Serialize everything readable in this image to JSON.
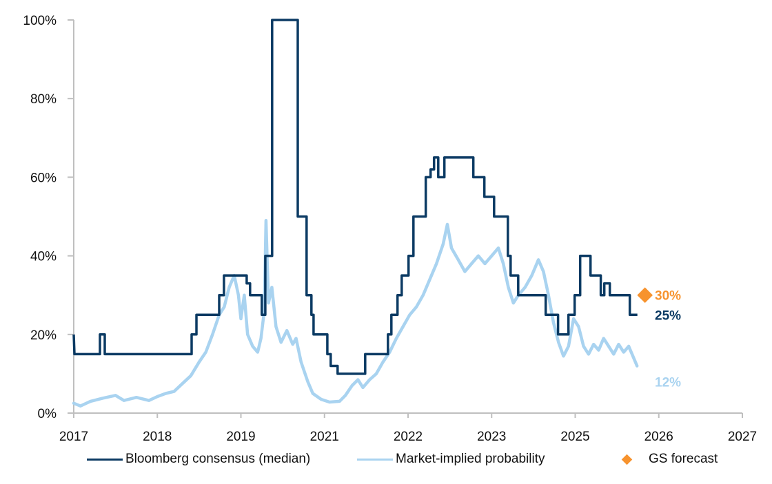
{
  "chart_data": {
    "type": "line",
    "title": "",
    "xlabel": "",
    "ylabel": "",
    "x_ticks": [
      "2017",
      "2018",
      "2019",
      "2021",
      "2022",
      "2023",
      "2025",
      "2026",
      "2027"
    ],
    "x_range_tick_index": [
      0,
      8
    ],
    "y_ticks": [
      "0%",
      "20%",
      "40%",
      "60%",
      "80%",
      "100%"
    ],
    "ylim": [
      0,
      100
    ],
    "grid": false,
    "legend_position": "bottom",
    "series": [
      {
        "name": "Bloomberg consensus (median)",
        "color": "#0b3a63",
        "style": "step",
        "points": [
          [
            0.0,
            20
          ],
          [
            0.008,
            15
          ],
          [
            0.313,
            15
          ],
          [
            0.313,
            20
          ],
          [
            0.371,
            20
          ],
          [
            0.371,
            15
          ],
          [
            1.41,
            15
          ],
          [
            1.41,
            20
          ],
          [
            1.468,
            20
          ],
          [
            1.468,
            25
          ],
          [
            1.74,
            25
          ],
          [
            1.74,
            30
          ],
          [
            1.797,
            30
          ],
          [
            1.797,
            35
          ],
          [
            2.069,
            35
          ],
          [
            2.069,
            33
          ],
          [
            2.11,
            33
          ],
          [
            2.11,
            30
          ],
          [
            2.25,
            30
          ],
          [
            2.25,
            25
          ],
          [
            2.292,
            25
          ],
          [
            2.292,
            40
          ],
          [
            2.374,
            40
          ],
          [
            2.374,
            100
          ],
          [
            2.68,
            100
          ],
          [
            2.68,
            50
          ],
          [
            2.786,
            50
          ],
          [
            2.786,
            30
          ],
          [
            2.844,
            30
          ],
          [
            2.844,
            25
          ],
          [
            2.869,
            25
          ],
          [
            2.869,
            20
          ],
          [
            3.034,
            20
          ],
          [
            3.034,
            15
          ],
          [
            3.075,
            15
          ],
          [
            3.075,
            12
          ],
          [
            3.157,
            12
          ],
          [
            3.157,
            10
          ],
          [
            3.487,
            10
          ],
          [
            3.487,
            15
          ],
          [
            3.759,
            15
          ],
          [
            3.759,
            20
          ],
          [
            3.8,
            20
          ],
          [
            3.8,
            25
          ],
          [
            3.874,
            25
          ],
          [
            3.874,
            30
          ],
          [
            3.924,
            30
          ],
          [
            3.924,
            35
          ],
          [
            4.006,
            35
          ],
          [
            4.006,
            40
          ],
          [
            4.064,
            40
          ],
          [
            4.064,
            50
          ],
          [
            4.212,
            50
          ],
          [
            4.212,
            60
          ],
          [
            4.27,
            60
          ],
          [
            4.27,
            62
          ],
          [
            4.311,
            62
          ],
          [
            4.311,
            65
          ],
          [
            4.361,
            65
          ],
          [
            4.361,
            60
          ],
          [
            4.435,
            60
          ],
          [
            4.435,
            65
          ],
          [
            4.781,
            65
          ],
          [
            4.781,
            60
          ],
          [
            4.913,
            60
          ],
          [
            4.913,
            55
          ],
          [
            5.029,
            55
          ],
          [
            5.029,
            50
          ],
          [
            5.194,
            50
          ],
          [
            5.194,
            40
          ],
          [
            5.227,
            40
          ],
          [
            5.227,
            35
          ],
          [
            5.318,
            35
          ],
          [
            5.318,
            30
          ],
          [
            5.647,
            30
          ],
          [
            5.647,
            25
          ],
          [
            5.795,
            25
          ],
          [
            5.795,
            20
          ],
          [
            5.919,
            20
          ],
          [
            5.919,
            25
          ],
          [
            5.993,
            25
          ],
          [
            5.993,
            30
          ],
          [
            6.059,
            30
          ],
          [
            6.059,
            40
          ],
          [
            6.183,
            40
          ],
          [
            6.183,
            35
          ],
          [
            6.306,
            35
          ],
          [
            6.306,
            30
          ],
          [
            6.348,
            30
          ],
          [
            6.348,
            33
          ],
          [
            6.414,
            33
          ],
          [
            6.414,
            30
          ],
          [
            6.653,
            30
          ],
          [
            6.653,
            25
          ],
          [
            6.744,
            25
          ]
        ],
        "end_label": "25%"
      },
      {
        "name": "Market-implied probability",
        "color": "#a9d3f0",
        "style": "line",
        "points": [
          [
            0.0,
            2.5
          ],
          [
            0.08,
            1.8
          ],
          [
            0.2,
            3.0
          ],
          [
            0.35,
            3.8
          ],
          [
            0.5,
            4.5
          ],
          [
            0.6,
            3.2
          ],
          [
            0.75,
            4.0
          ],
          [
            0.9,
            3.2
          ],
          [
            1.0,
            4.2
          ],
          [
            1.1,
            5.0
          ],
          [
            1.2,
            5.5
          ],
          [
            1.3,
            7.5
          ],
          [
            1.4,
            9.5
          ],
          [
            1.5,
            13.0
          ],
          [
            1.58,
            15.5
          ],
          [
            1.66,
            20.0
          ],
          [
            1.74,
            25.0
          ],
          [
            1.8,
            27.0
          ],
          [
            1.86,
            32.0
          ],
          [
            1.92,
            35.0
          ],
          [
            1.97,
            30.0
          ],
          [
            2.0,
            24.0
          ],
          [
            2.04,
            30.0
          ],
          [
            2.08,
            20.0
          ],
          [
            2.14,
            17.0
          ],
          [
            2.2,
            15.5
          ],
          [
            2.24,
            19.0
          ],
          [
            2.28,
            26.0
          ],
          [
            2.3,
            49.0
          ],
          [
            2.33,
            28.0
          ],
          [
            2.37,
            32.0
          ],
          [
            2.42,
            22.0
          ],
          [
            2.48,
            18.0
          ],
          [
            2.55,
            21.0
          ],
          [
            2.62,
            17.5
          ],
          [
            2.66,
            19.0
          ],
          [
            2.72,
            13.0
          ],
          [
            2.8,
            8.0
          ],
          [
            2.86,
            5.0
          ],
          [
            2.96,
            3.5
          ],
          [
            3.06,
            2.8
          ],
          [
            3.18,
            3.0
          ],
          [
            3.25,
            4.5
          ],
          [
            3.33,
            7.0
          ],
          [
            3.4,
            8.5
          ],
          [
            3.46,
            6.5
          ],
          [
            3.54,
            8.5
          ],
          [
            3.62,
            10.0
          ],
          [
            3.7,
            13.0
          ],
          [
            3.78,
            15.5
          ],
          [
            3.86,
            19.0
          ],
          [
            3.94,
            22.0
          ],
          [
            4.02,
            25.0
          ],
          [
            4.1,
            27.0
          ],
          [
            4.18,
            30.0
          ],
          [
            4.26,
            34.0
          ],
          [
            4.34,
            38.0
          ],
          [
            4.42,
            43.0
          ],
          [
            4.47,
            48.0
          ],
          [
            4.52,
            42.0
          ],
          [
            4.6,
            39.0
          ],
          [
            4.68,
            36.0
          ],
          [
            4.76,
            38.0
          ],
          [
            4.84,
            40.0
          ],
          [
            4.92,
            38.0
          ],
          [
            5.0,
            40.0
          ],
          [
            5.08,
            42.0
          ],
          [
            5.14,
            38.0
          ],
          [
            5.2,
            32.0
          ],
          [
            5.26,
            28.0
          ],
          [
            5.32,
            30.0
          ],
          [
            5.4,
            32.0
          ],
          [
            5.48,
            35.0
          ],
          [
            5.56,
            39.0
          ],
          [
            5.62,
            36.0
          ],
          [
            5.68,
            30.0
          ],
          [
            5.74,
            23.0
          ],
          [
            5.8,
            18.0
          ],
          [
            5.86,
            14.5
          ],
          [
            5.92,
            17.0
          ],
          [
            5.98,
            24.0
          ],
          [
            6.04,
            22.0
          ],
          [
            6.1,
            17.0
          ],
          [
            6.16,
            15.0
          ],
          [
            6.22,
            17.5
          ],
          [
            6.28,
            16.0
          ],
          [
            6.34,
            19.0
          ],
          [
            6.4,
            17.0
          ],
          [
            6.46,
            15.0
          ],
          [
            6.52,
            17.5
          ],
          [
            6.58,
            15.5
          ],
          [
            6.64,
            17.0
          ],
          [
            6.7,
            14.0
          ],
          [
            6.74,
            12.0
          ]
        ],
        "end_label": "12%"
      },
      {
        "name": "GS forecast",
        "color": "#f7932e",
        "style": "marker",
        "points": [
          [
            6.744,
            30
          ]
        ],
        "end_label": "30%"
      }
    ]
  }
}
